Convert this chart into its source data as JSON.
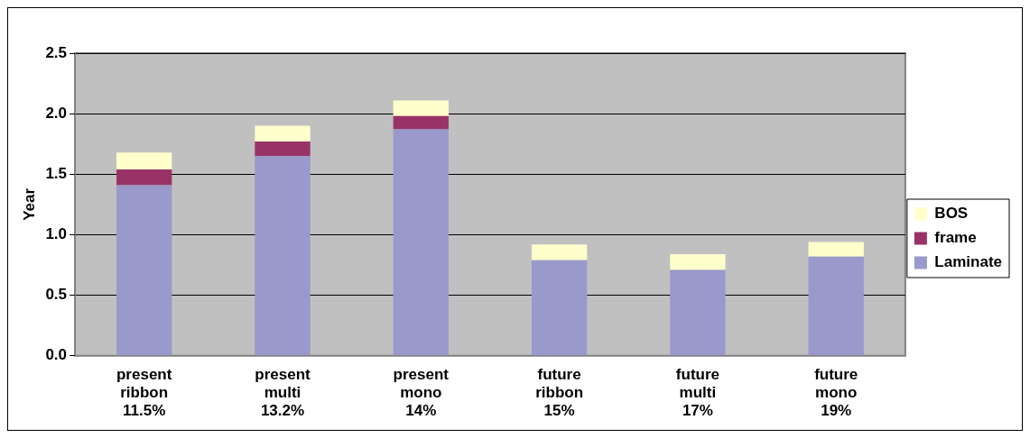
{
  "chart_data": {
    "type": "bar",
    "stacked": true,
    "ylabel": "Year",
    "categories": [
      "present ribbon 11.5%",
      "present multi 13.2%",
      "present mono 14%",
      "future ribbon 15%",
      "future multi 17%",
      "future mono 19%"
    ],
    "series": [
      {
        "name": "Laminate",
        "color": "#9999cc",
        "values": [
          1.41,
          1.65,
          1.87,
          0.79,
          0.71,
          0.82
        ]
      },
      {
        "name": "frame",
        "color": "#993366",
        "values": [
          0.13,
          0.12,
          0.11,
          null,
          null,
          null
        ]
      },
      {
        "name": "BOS",
        "color": "#ffffcc",
        "values": [
          0.14,
          0.13,
          0.13,
          0.13,
          0.13,
          0.12
        ]
      }
    ],
    "ylim": [
      0,
      2.5
    ],
    "yticks": [
      {
        "value": 0,
        "label": "0.0"
      },
      {
        "value": 0.5,
        "label": "0.5"
      },
      {
        "value": 1,
        "label": "1.0"
      },
      {
        "value": 1.5,
        "label": "1.5"
      },
      {
        "value": 2,
        "label": "2.0"
      },
      {
        "value": 2.5,
        "label": "2.5"
      }
    ],
    "grid": "y",
    "legend": "right"
  }
}
